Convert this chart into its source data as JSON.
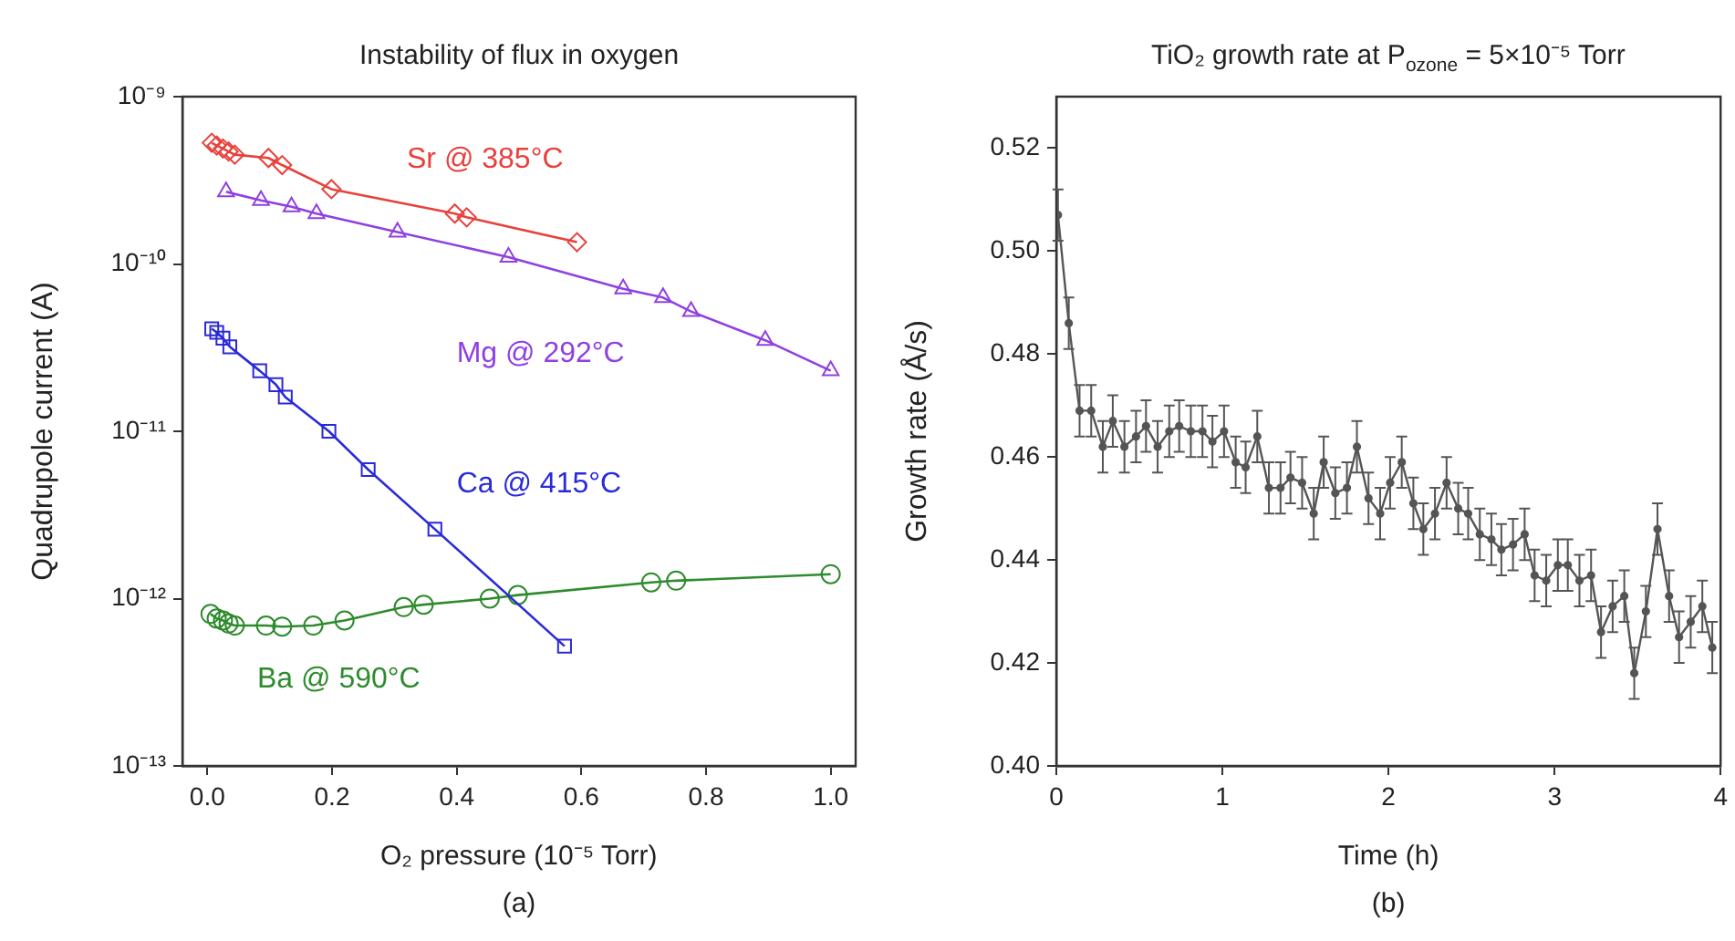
{
  "chart_data": [
    {
      "type": "line",
      "title": "Instability of flux in oxygen",
      "xlabel": "O₂ pressure (10⁻⁵ Torr)",
      "ylabel": "Quadrupole current (A)",
      "log": "y",
      "grid": false,
      "line_style": "solid",
      "xlim": [
        -0.04,
        1.04
      ],
      "xticks": [
        {
          "value": 0,
          "label": "0.0"
        },
        {
          "value": 0.2,
          "label": "0.2"
        },
        {
          "value": 0.4,
          "label": "0.4"
        },
        {
          "value": 0.6,
          "label": "0.6"
        },
        {
          "value": 0.8,
          "label": "0.8"
        },
        {
          "value": 1,
          "label": "1.0"
        }
      ],
      "ylim": [
        1e-13,
        1e-09
      ],
      "yticks": [
        {
          "value": 1e-13,
          "label": "10⁻¹³"
        },
        {
          "value": 1e-12,
          "label": "10⁻¹²"
        },
        {
          "value": 1e-11,
          "label": "10⁻¹¹"
        },
        {
          "value": 1e-10,
          "label": "10⁻¹⁰"
        },
        {
          "value": 1e-09,
          "label": "10⁻⁹"
        }
      ],
      "annotations": [
        "(a)"
      ],
      "series": [
        {
          "name": "Sr @ 385°C",
          "color": "#e8413c",
          "marker": "diamond",
          "x": [
            0.007,
            0.015,
            0.025,
            0.034,
            0.044,
            0.098,
            0.12,
            0.199,
            0.397,
            0.416,
            0.593
          ],
          "values": [
            5.3e-10,
            5.1e-10,
            4.9e-10,
            4.7e-10,
            4.5e-10,
            4.3e-10,
            3.9e-10,
            2.8e-10,
            2e-10,
            1.9e-10,
            1.35e-10
          ]
        },
        {
          "name": "Mg @ 292°C",
          "color": "#9040e0",
          "marker": "triangle",
          "x": [
            0.03,
            0.086,
            0.135,
            0.175,
            0.305,
            0.483,
            0.667,
            0.731,
            0.776,
            0.895,
            1.0
          ],
          "values": [
            2.7e-10,
            2.4e-10,
            2.2e-10,
            2e-10,
            1.55e-10,
            1.1e-10,
            7.1e-11,
            6.3e-11,
            5.2e-11,
            3.5e-11,
            2.3e-11
          ]
        },
        {
          "name": "Ca @ 415°C",
          "color": "#2a2ad8",
          "marker": "square",
          "x": [
            0.007,
            0.015,
            0.025,
            0.036,
            0.084,
            0.11,
            0.125,
            0.195,
            0.258,
            0.365,
            0.573
          ],
          "values": [
            4.1e-11,
            3.9e-11,
            3.6e-11,
            3.2e-11,
            2.3e-11,
            1.9e-11,
            1.6e-11,
            1e-11,
            5.9e-12,
            2.6e-12,
            5.2e-13
          ]
        },
        {
          "name": "Ba @ 590°C",
          "color": "#2e8b2e",
          "marker": "circle",
          "x": [
            0.005,
            0.015,
            0.025,
            0.034,
            0.044,
            0.094,
            0.12,
            0.17,
            0.22,
            0.315,
            0.347,
            0.453,
            0.498,
            0.712,
            0.752,
            1.0
          ],
          "values": [
            8.1e-13,
            7.6e-13,
            7.4e-13,
            7.1e-13,
            6.9e-13,
            6.9e-13,
            6.8e-13,
            6.9e-13,
            7.4e-13,
            8.9e-13,
            9.2e-13,
            1e-12,
            1.05e-12,
            1.25e-12,
            1.28e-12,
            1.4e-12
          ]
        }
      ]
    },
    {
      "type": "line",
      "title": "TiO₂ growth rate at P$_{ozone}$ = 5×10⁻⁵ Torr",
      "xlabel": "Time (h)",
      "ylabel": "Growth rate (Å/s)",
      "grid": false,
      "line_style": "solid",
      "marker": "circle",
      "xlim": [
        0,
        4
      ],
      "xticks": [
        0,
        1,
        2,
        3,
        4
      ],
      "ylim": [
        0.4,
        0.53
      ],
      "yticks": [
        {
          "value": 0.4,
          "label": "0.40"
        },
        {
          "value": 0.42,
          "label": "0.42"
        },
        {
          "value": 0.44,
          "label": "0.44"
        },
        {
          "value": 0.46,
          "label": "0.46"
        },
        {
          "value": 0.48,
          "label": "0.48"
        },
        {
          "value": 0.5,
          "label": "0.50"
        },
        {
          "value": 0.52,
          "label": "0.52"
        }
      ],
      "annotations": [
        "(b)"
      ],
      "series": [
        {
          "color": "#555555",
          "x": [
            0.01,
            0.075,
            0.14,
            0.21,
            0.28,
            0.34,
            0.41,
            0.48,
            0.54,
            0.61,
            0.68,
            0.74,
            0.81,
            0.88,
            0.94,
            1.01,
            1.08,
            1.14,
            1.21,
            1.28,
            1.35,
            1.41,
            1.48,
            1.55,
            1.61,
            1.68,
            1.75,
            1.81,
            1.88,
            1.95,
            2.01,
            2.08,
            2.15,
            2.21,
            2.28,
            2.35,
            2.42,
            2.48,
            2.55,
            2.62,
            2.68,
            2.75,
            2.82,
            2.88,
            2.95,
            3.02,
            3.08,
            3.15,
            3.22,
            3.28,
            3.35,
            3.42,
            3.48,
            3.55,
            3.62,
            3.69,
            3.75,
            3.82,
            3.89,
            3.95
          ],
          "values": [
            0.507,
            0.486,
            0.469,
            0.469,
            0.462,
            0.467,
            0.462,
            0.464,
            0.466,
            0.462,
            0.465,
            0.466,
            0.465,
            0.465,
            0.463,
            0.465,
            0.459,
            0.458,
            0.464,
            0.454,
            0.454,
            0.456,
            0.455,
            0.449,
            0.459,
            0.453,
            0.454,
            0.462,
            0.452,
            0.449,
            0.455,
            0.459,
            0.451,
            0.446,
            0.449,
            0.455,
            0.45,
            0.449,
            0.445,
            0.444,
            0.442,
            0.443,
            0.445,
            0.437,
            0.436,
            0.439,
            0.439,
            0.436,
            0.437,
            0.426,
            0.431,
            0.433,
            0.418,
            0.43,
            0.446,
            0.433,
            0.425,
            0.428,
            0.431,
            0.423
          ],
          "errors": [
            0.005,
            0.005,
            0.005,
            0.005,
            0.005,
            0.005,
            0.005,
            0.005,
            0.005,
            0.005,
            0.005,
            0.005,
            0.005,
            0.005,
            0.005,
            0.005,
            0.005,
            0.005,
            0.005,
            0.005,
            0.005,
            0.005,
            0.005,
            0.005,
            0.005,
            0.005,
            0.005,
            0.005,
            0.005,
            0.005,
            0.005,
            0.005,
            0.005,
            0.005,
            0.005,
            0.005,
            0.005,
            0.005,
            0.005,
            0.005,
            0.005,
            0.005,
            0.005,
            0.005,
            0.005,
            0.005,
            0.005,
            0.005,
            0.005,
            0.005,
            0.005,
            0.005,
            0.005,
            0.005,
            0.005,
            0.005,
            0.005,
            0.005,
            0.005,
            0.005
          ]
        }
      ]
    }
  ]
}
